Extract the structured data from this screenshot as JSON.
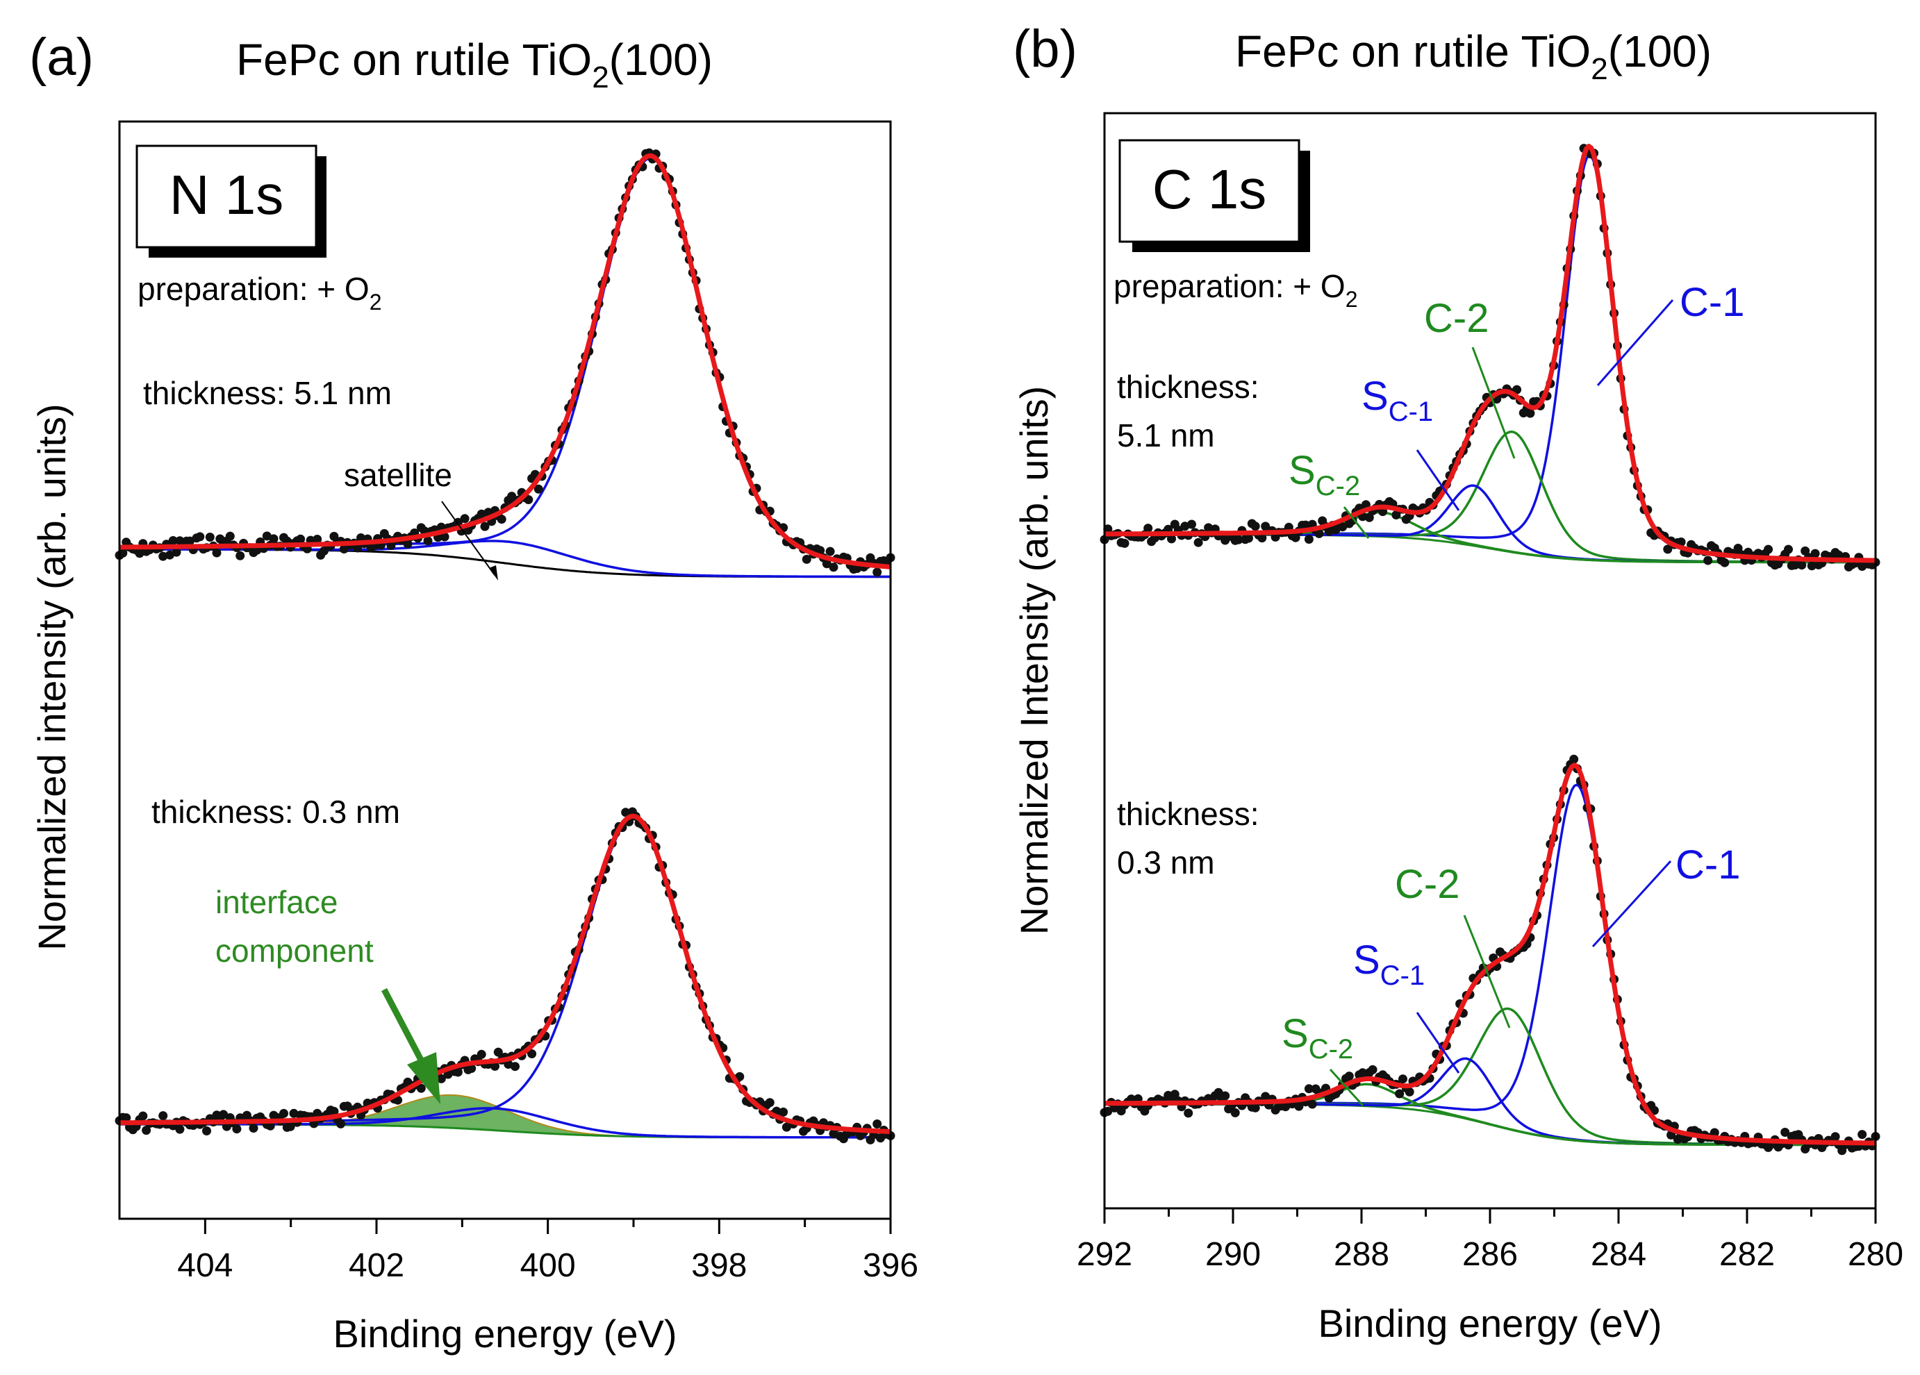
{
  "chart_data": [
    {
      "type": "line",
      "panel_label": "(a)",
      "title_main": "FePc on rutile TiO",
      "title_sub": "2",
      "title_end": "(100)",
      "xlabel": "Binding energy (eV)",
      "ylabel": "Normalized intensity (arb. units)",
      "xlim": [
        405,
        396
      ],
      "ylim": [
        0,
        1
      ],
      "xticks": [
        404,
        402,
        400,
        398,
        396
      ],
      "core_level": "N 1s",
      "annotations": {
        "prep_main": "preparation: + O",
        "prep_sub": "2",
        "thick_top": "thickness: 5.1 nm",
        "satellite": "satellite",
        "thick_bottom": "thickness: 0.3 nm",
        "interface_1": "interface",
        "interface_2": "component"
      },
      "spectra": [
        {
          "label": "thickness: 5.1 nm",
          "baseline_left": 0.61,
          "baseline_right": 0.585,
          "series": [
            {
              "name": "fit envelope",
              "color": "#e8191b"
            },
            {
              "name": "main component",
              "color": "#1010e0",
              "center": 398.8,
              "height": 0.38
            },
            {
              "name": "satellite",
              "color": "#1010e0",
              "center": 400.4,
              "height": 0.02
            },
            {
              "name": "background",
              "color": "#000000"
            },
            {
              "name": "data",
              "color": "#000000"
            }
          ]
        },
        {
          "label": "thickness: 0.3 nm",
          "baseline_left": 0.086,
          "baseline_right": 0.074,
          "series": [
            {
              "name": "fit envelope",
              "color": "#e8191b"
            },
            {
              "name": "main component",
              "color": "#1010e0",
              "center": 399.0,
              "height": 0.29
            },
            {
              "name": "satellite",
              "color": "#1010e0",
              "center": 400.6,
              "height": 0.02
            },
            {
              "name": "interface component",
              "color": "#2e8b22",
              "center": 401.1,
              "height": 0.03
            },
            {
              "name": "data",
              "color": "#000000"
            }
          ]
        }
      ]
    },
    {
      "type": "line",
      "panel_label": "(b)",
      "title_main": "FePc on rutile TiO",
      "title_sub": "2",
      "title_end": "(100)",
      "xlabel": "Binding energy (eV)",
      "ylabel": "Normalized Intensity (arb. units)",
      "xlim": [
        292,
        280
      ],
      "ylim": [
        0,
        1
      ],
      "xticks": [
        292,
        290,
        288,
        286,
        284,
        282,
        280
      ],
      "core_level": "C 1s",
      "annotations": {
        "prep_main": "preparation: + O",
        "prep_sub": "2",
        "thick_top_1": "thickness:",
        "thick_top_2": "5.1 nm",
        "thick_bottom_1": "thickness:",
        "thick_bottom_2": "0.3 nm",
        "c1": "C-1",
        "c2": "C-2",
        "s_main": "S",
        "sc1_sub": "C-1",
        "sc2_sub": "C-2"
      },
      "spectra": [
        {
          "label": "thickness: 5.1 nm",
          "baseline_left": 0.615,
          "baseline_right": 0.59,
          "series": [
            {
              "name": "fit envelope",
              "color": "#e8191b"
            },
            {
              "name": "C-1",
              "color": "#1010e0",
              "center": 284.45,
              "height": 0.37
            },
            {
              "name": "C-2",
              "color": "#1f8a1f",
              "center": 285.65,
              "height": 0.11
            },
            {
              "name": "S C-1",
              "color": "#1010e0",
              "center": 286.25,
              "height": 0.055
            },
            {
              "name": "S C-2",
              "color": "#1f8a1f",
              "center": 287.7,
              "height": 0.022
            },
            {
              "name": "data",
              "color": "#000000"
            }
          ]
        },
        {
          "label": "thickness: 0.3 nm",
          "baseline_left": 0.095,
          "baseline_right": 0.058,
          "series": [
            {
              "name": "fit envelope",
              "color": "#e8191b"
            },
            {
              "name": "C-1",
              "color": "#1010e0",
              "center": 284.65,
              "height": 0.325
            },
            {
              "name": "C-2",
              "color": "#1f8a1f",
              "center": 285.7,
              "height": 0.11
            },
            {
              "name": "S C-1",
              "color": "#1010e0",
              "center": 286.35,
              "height": 0.055
            },
            {
              "name": "S C-2",
              "color": "#1f8a1f",
              "center": 287.9,
              "height": 0.02
            },
            {
              "name": "data",
              "color": "#000000"
            }
          ]
        }
      ]
    }
  ]
}
